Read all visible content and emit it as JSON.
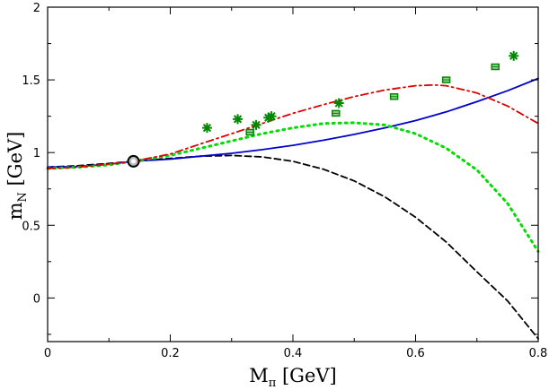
{
  "chart_data": {
    "type": "line",
    "xlabel": {
      "main": "M",
      "sub": "π",
      "unit": " [GeV]"
    },
    "ylabel": {
      "main": "m",
      "sub": "N",
      "unit": " [GeV]"
    },
    "xlim": [
      0,
      0.8
    ],
    "ylim": [
      -0.3,
      2.0
    ],
    "xticks": [
      0,
      0.2,
      0.4,
      0.6,
      0.8
    ],
    "xtick_labels": [
      "0",
      "0.2",
      "0.4",
      "0.6",
      "0.8"
    ],
    "yticks": [
      0,
      0.5,
      1,
      1.5,
      2
    ],
    "ytick_labels": [
      "0",
      "0.5",
      "1",
      "1.5",
      "2"
    ],
    "series": [
      {
        "name": "black-dashed",
        "style": "dashed",
        "color": "#000000",
        "x": [
          0,
          0.05,
          0.1,
          0.14,
          0.2,
          0.25,
          0.3,
          0.35,
          0.4,
          0.45,
          0.5,
          0.55,
          0.6,
          0.65,
          0.7,
          0.75,
          0.8
        ],
        "y": [
          0.9,
          0.91,
          0.925,
          0.94,
          0.96,
          0.975,
          0.98,
          0.97,
          0.94,
          0.885,
          0.805,
          0.695,
          0.555,
          0.385,
          0.18,
          -0.02,
          -0.28
        ]
      },
      {
        "name": "blue-solid",
        "style": "solid",
        "color": "#0000cc",
        "x": [
          0,
          0.05,
          0.1,
          0.14,
          0.2,
          0.25,
          0.3,
          0.35,
          0.4,
          0.45,
          0.5,
          0.55,
          0.6,
          0.65,
          0.7,
          0.75,
          0.8
        ],
        "y": [
          0.9,
          0.905,
          0.92,
          0.94,
          0.955,
          0.975,
          0.995,
          1.02,
          1.05,
          1.085,
          1.125,
          1.17,
          1.22,
          1.28,
          1.35,
          1.425,
          1.51
        ]
      },
      {
        "name": "green-dotted",
        "style": "dotted",
        "color": "#00dd00",
        "x": [
          0,
          0.05,
          0.1,
          0.14,
          0.2,
          0.25,
          0.3,
          0.35,
          0.4,
          0.45,
          0.5,
          0.55,
          0.6,
          0.65,
          0.7,
          0.75,
          0.8
        ],
        "y": [
          0.89,
          0.9,
          0.915,
          0.94,
          0.98,
          1.03,
          1.08,
          1.13,
          1.17,
          1.2,
          1.205,
          1.19,
          1.13,
          1.03,
          0.88,
          0.65,
          0.32
        ]
      },
      {
        "name": "red-dashdot",
        "style": "dashdot",
        "color": "#dd0000",
        "x": [
          0,
          0.05,
          0.1,
          0.14,
          0.2,
          0.25,
          0.3,
          0.35,
          0.4,
          0.45,
          0.5,
          0.55,
          0.6,
          0.63,
          0.65,
          0.7,
          0.75,
          0.8
        ],
        "y": [
          0.89,
          0.9,
          0.92,
          0.94,
          0.99,
          1.06,
          1.13,
          1.2,
          1.27,
          1.33,
          1.385,
          1.43,
          1.46,
          1.465,
          1.46,
          1.41,
          1.32,
          1.2
        ]
      }
    ],
    "point_sets": [
      {
        "name": "green-stars",
        "marker": "star",
        "color": "#008800",
        "x": [
          0.26,
          0.31,
          0.34,
          0.36,
          0.365,
          0.475,
          0.76
        ],
        "y": [
          1.17,
          1.23,
          1.19,
          1.24,
          1.25,
          1.34,
          1.665
        ]
      },
      {
        "name": "green-boxes",
        "marker": "box",
        "color": "#008800",
        "x": [
          0.33,
          0.47,
          0.565,
          0.65,
          0.73
        ],
        "y": [
          1.14,
          1.27,
          1.385,
          1.5,
          1.59
        ]
      },
      {
        "name": "physical-point",
        "marker": "circle",
        "color": "#000000",
        "x": [
          0.14
        ],
        "y": [
          0.94
        ]
      }
    ]
  }
}
